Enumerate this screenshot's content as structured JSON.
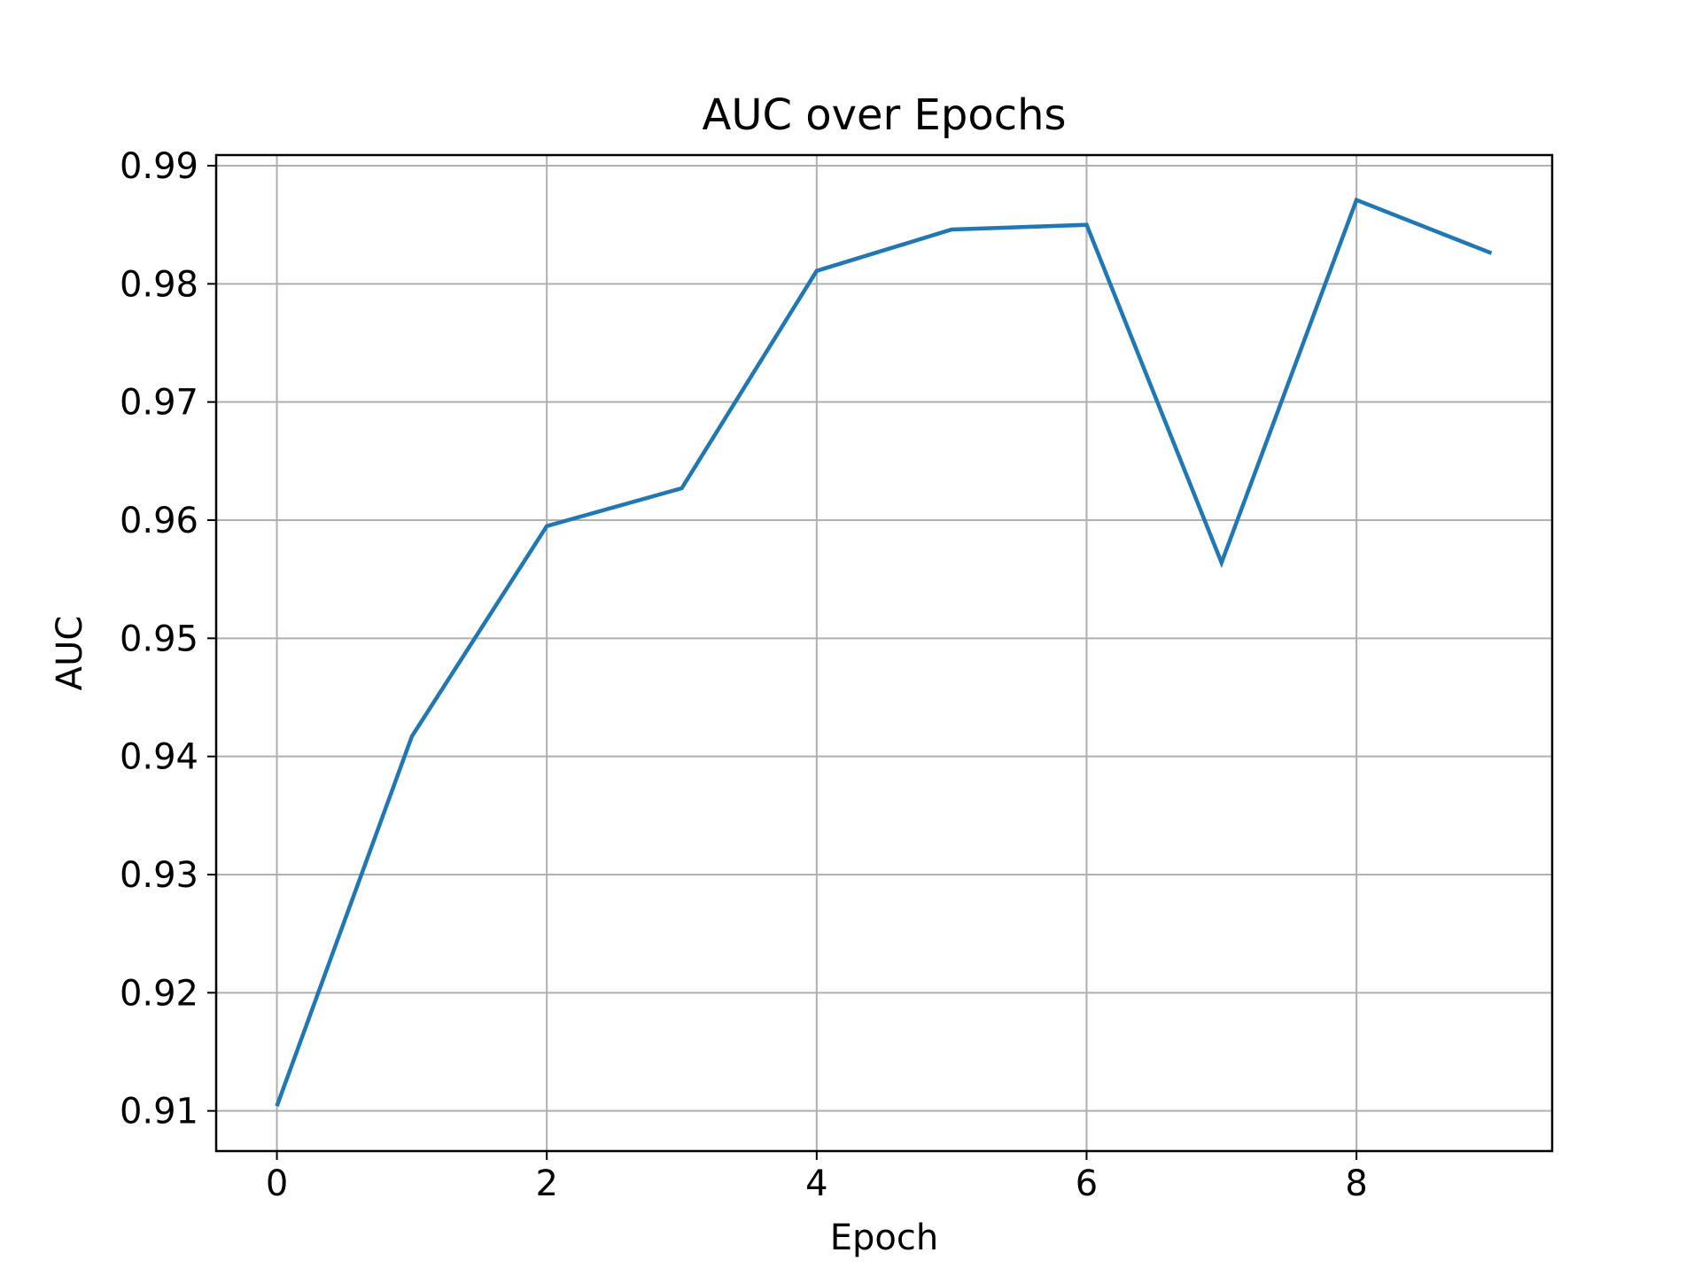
{
  "chart_data": {
    "type": "line",
    "title": "AUC over Epochs",
    "xlabel": "Epoch",
    "ylabel": "AUC",
    "xlim": [
      -0.45,
      9.45
    ],
    "ylim": [
      0.9066,
      0.9909
    ],
    "xticks": [
      0,
      2,
      4,
      6,
      8
    ],
    "xtick_labels": [
      "0",
      "2",
      "4",
      "6",
      "8"
    ],
    "yticks": [
      0.91,
      0.92,
      0.93,
      0.94,
      0.95,
      0.96,
      0.97,
      0.98,
      0.99
    ],
    "ytick_labels": [
      "0.91",
      "0.92",
      "0.93",
      "0.94",
      "0.95",
      "0.96",
      "0.97",
      "0.98",
      "0.99"
    ],
    "grid": true,
    "series": [
      {
        "color": "#1f77b4",
        "x": [
          0,
          1,
          2,
          3,
          4,
          5,
          6,
          7,
          8,
          9
        ],
        "values": [
          0.9104,
          0.9417,
          0.9595,
          0.9627,
          0.9811,
          0.9846,
          0.985,
          0.9564,
          0.9871,
          0.9826
        ]
      }
    ]
  }
}
